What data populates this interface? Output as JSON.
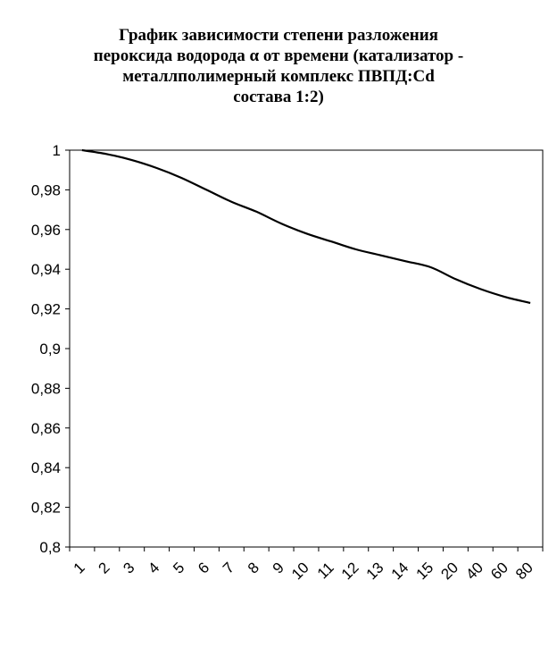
{
  "chart_data": {
    "type": "line",
    "title_lines": [
      "График зависимости степени разложения",
      "пероксида водорода α от времени (катализатор -",
      "металлполимерный комплекс ПВПД:Cd",
      "состава 1:2)"
    ],
    "xlabel": "",
    "ylabel": "",
    "categories": [
      "1",
      "2",
      "3",
      "4",
      "5",
      "6",
      "7",
      "8",
      "9",
      "10",
      "11",
      "12",
      "13",
      "14",
      "15",
      "20",
      "40",
      "60",
      "80"
    ],
    "series": [
      {
        "values": [
          1.0,
          0.998,
          0.995,
          0.991,
          0.986,
          0.98,
          0.974,
          0.969,
          0.963,
          0.958,
          0.954,
          0.95,
          0.947,
          0.944,
          0.941,
          0.935,
          0.93,
          0.926,
          0.923
        ],
        "color": "#000000"
      }
    ],
    "ylim": [
      0.8,
      1.0
    ],
    "yticks": [
      "0,8",
      "0,82",
      "0,84",
      "0,86",
      "0,88",
      "0,9",
      "0,92",
      "0,94",
      "0,96",
      "0,98",
      "1"
    ],
    "grid": false,
    "legend": "none"
  }
}
